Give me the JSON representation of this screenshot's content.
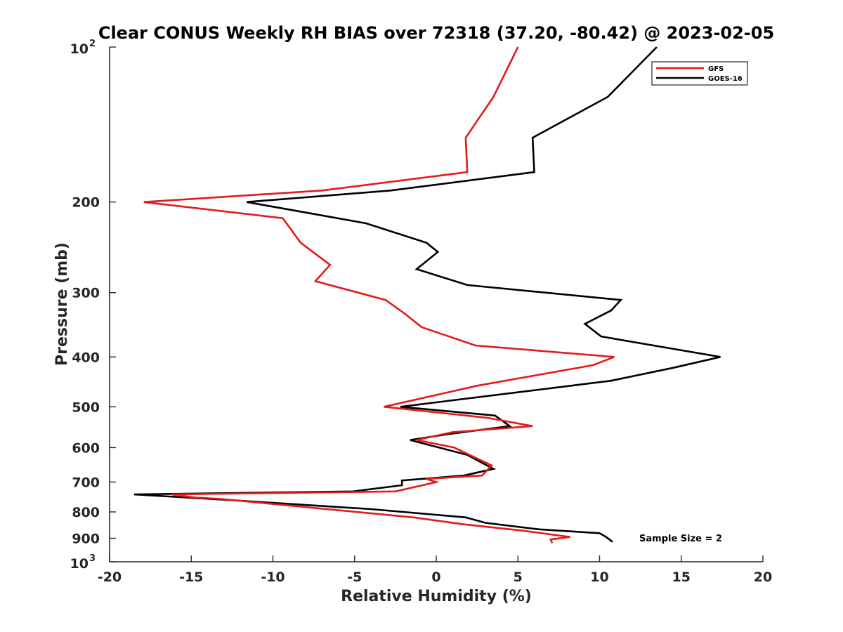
{
  "chart_data": {
    "type": "line",
    "title": "Clear CONUS Weekly RH BIAS over 72318 (37.20, -80.42) @ 2023-02-05",
    "xlabel": "Relative Humidity (%)",
    "ylabel": "Pressure (mb)",
    "xlim": [
      -20,
      20
    ],
    "ylim": [
      100,
      1000
    ],
    "y_scale": "log",
    "y_reversed": true,
    "x_ticks": [
      "-20",
      "-15",
      "-10",
      "-5",
      "0",
      "5",
      "10",
      "15",
      "20"
    ],
    "y_ticks": [
      {
        "value": 100,
        "base": "10",
        "exp": "2"
      },
      {
        "value": 200,
        "label": "200"
      },
      {
        "value": 300,
        "label": "300"
      },
      {
        "value": 400,
        "label": "400"
      },
      {
        "value": 500,
        "label": "500"
      },
      {
        "value": 600,
        "label": "600"
      },
      {
        "value": 700,
        "label": "700"
      },
      {
        "value": 800,
        "label": "800"
      },
      {
        "value": 900,
        "label": "900"
      },
      {
        "value": 1000,
        "base": "10",
        "exp": "3"
      }
    ],
    "legend_position": "top-right",
    "annotation": "Sample Size = 2",
    "series": [
      {
        "name": "GFS",
        "color": "#e41a1c",
        "points": [
          [
            5.0,
            100
          ],
          [
            3.5,
            125
          ],
          [
            1.8,
            150
          ],
          [
            1.9,
            175
          ],
          [
            -7.0,
            190
          ],
          [
            -17.9,
            200
          ],
          [
            -9.4,
            215
          ],
          [
            -8.3,
            240
          ],
          [
            -6.5,
            265
          ],
          [
            -7.4,
            285
          ],
          [
            -3.1,
            310
          ],
          [
            -1.9,
            330
          ],
          [
            -0.9,
            350
          ],
          [
            2.4,
            380
          ],
          [
            10.9,
            400
          ],
          [
            9.6,
            415
          ],
          [
            2.5,
            455
          ],
          [
            -3.2,
            500
          ],
          [
            3.1,
            525
          ],
          [
            5.9,
            545
          ],
          [
            1.0,
            560
          ],
          [
            -1.2,
            580
          ],
          [
            1.1,
            600
          ],
          [
            3.4,
            650
          ],
          [
            2.8,
            680
          ],
          [
            -0.6,
            690
          ],
          [
            0.0,
            700
          ],
          [
            -2.5,
            730
          ],
          [
            -16.2,
            740
          ],
          [
            -14.8,
            750
          ],
          [
            -13.2,
            755
          ],
          [
            -1.4,
            820
          ],
          [
            1.6,
            845
          ],
          [
            5.3,
            870
          ],
          [
            8.2,
            895
          ],
          [
            7.0,
            905
          ],
          [
            7.1,
            920
          ]
        ]
      },
      {
        "name": "GOES-16",
        "color": "#000000",
        "points": [
          [
            13.5,
            100
          ],
          [
            10.5,
            125
          ],
          [
            5.9,
            150
          ],
          [
            6.0,
            175
          ],
          [
            -2.8,
            190
          ],
          [
            -11.6,
            200
          ],
          [
            -4.3,
            220
          ],
          [
            -0.6,
            240
          ],
          [
            0.1,
            250
          ],
          [
            -1.2,
            270
          ],
          [
            1.9,
            290
          ],
          [
            11.3,
            310
          ],
          [
            10.7,
            325
          ],
          [
            9.1,
            345
          ],
          [
            10.1,
            365
          ],
          [
            17.4,
            400
          ],
          [
            14.5,
            420
          ],
          [
            10.7,
            445
          ],
          [
            -2.2,
            500
          ],
          [
            3.6,
            520
          ],
          [
            4.5,
            545
          ],
          [
            0.7,
            565
          ],
          [
            -1.6,
            580
          ],
          [
            1.9,
            620
          ],
          [
            3.5,
            660
          ],
          [
            1.7,
            680
          ],
          [
            -2.1,
            695
          ],
          [
            -2.1,
            710
          ],
          [
            -5.1,
            730
          ],
          [
            -18.5,
            740
          ],
          [
            -12.3,
            760
          ],
          [
            -4.0,
            790
          ],
          [
            1.8,
            820
          ],
          [
            3.0,
            840
          ],
          [
            6.3,
            865
          ],
          [
            10.0,
            880
          ],
          [
            10.4,
            895
          ],
          [
            10.8,
            915
          ]
        ]
      }
    ]
  }
}
